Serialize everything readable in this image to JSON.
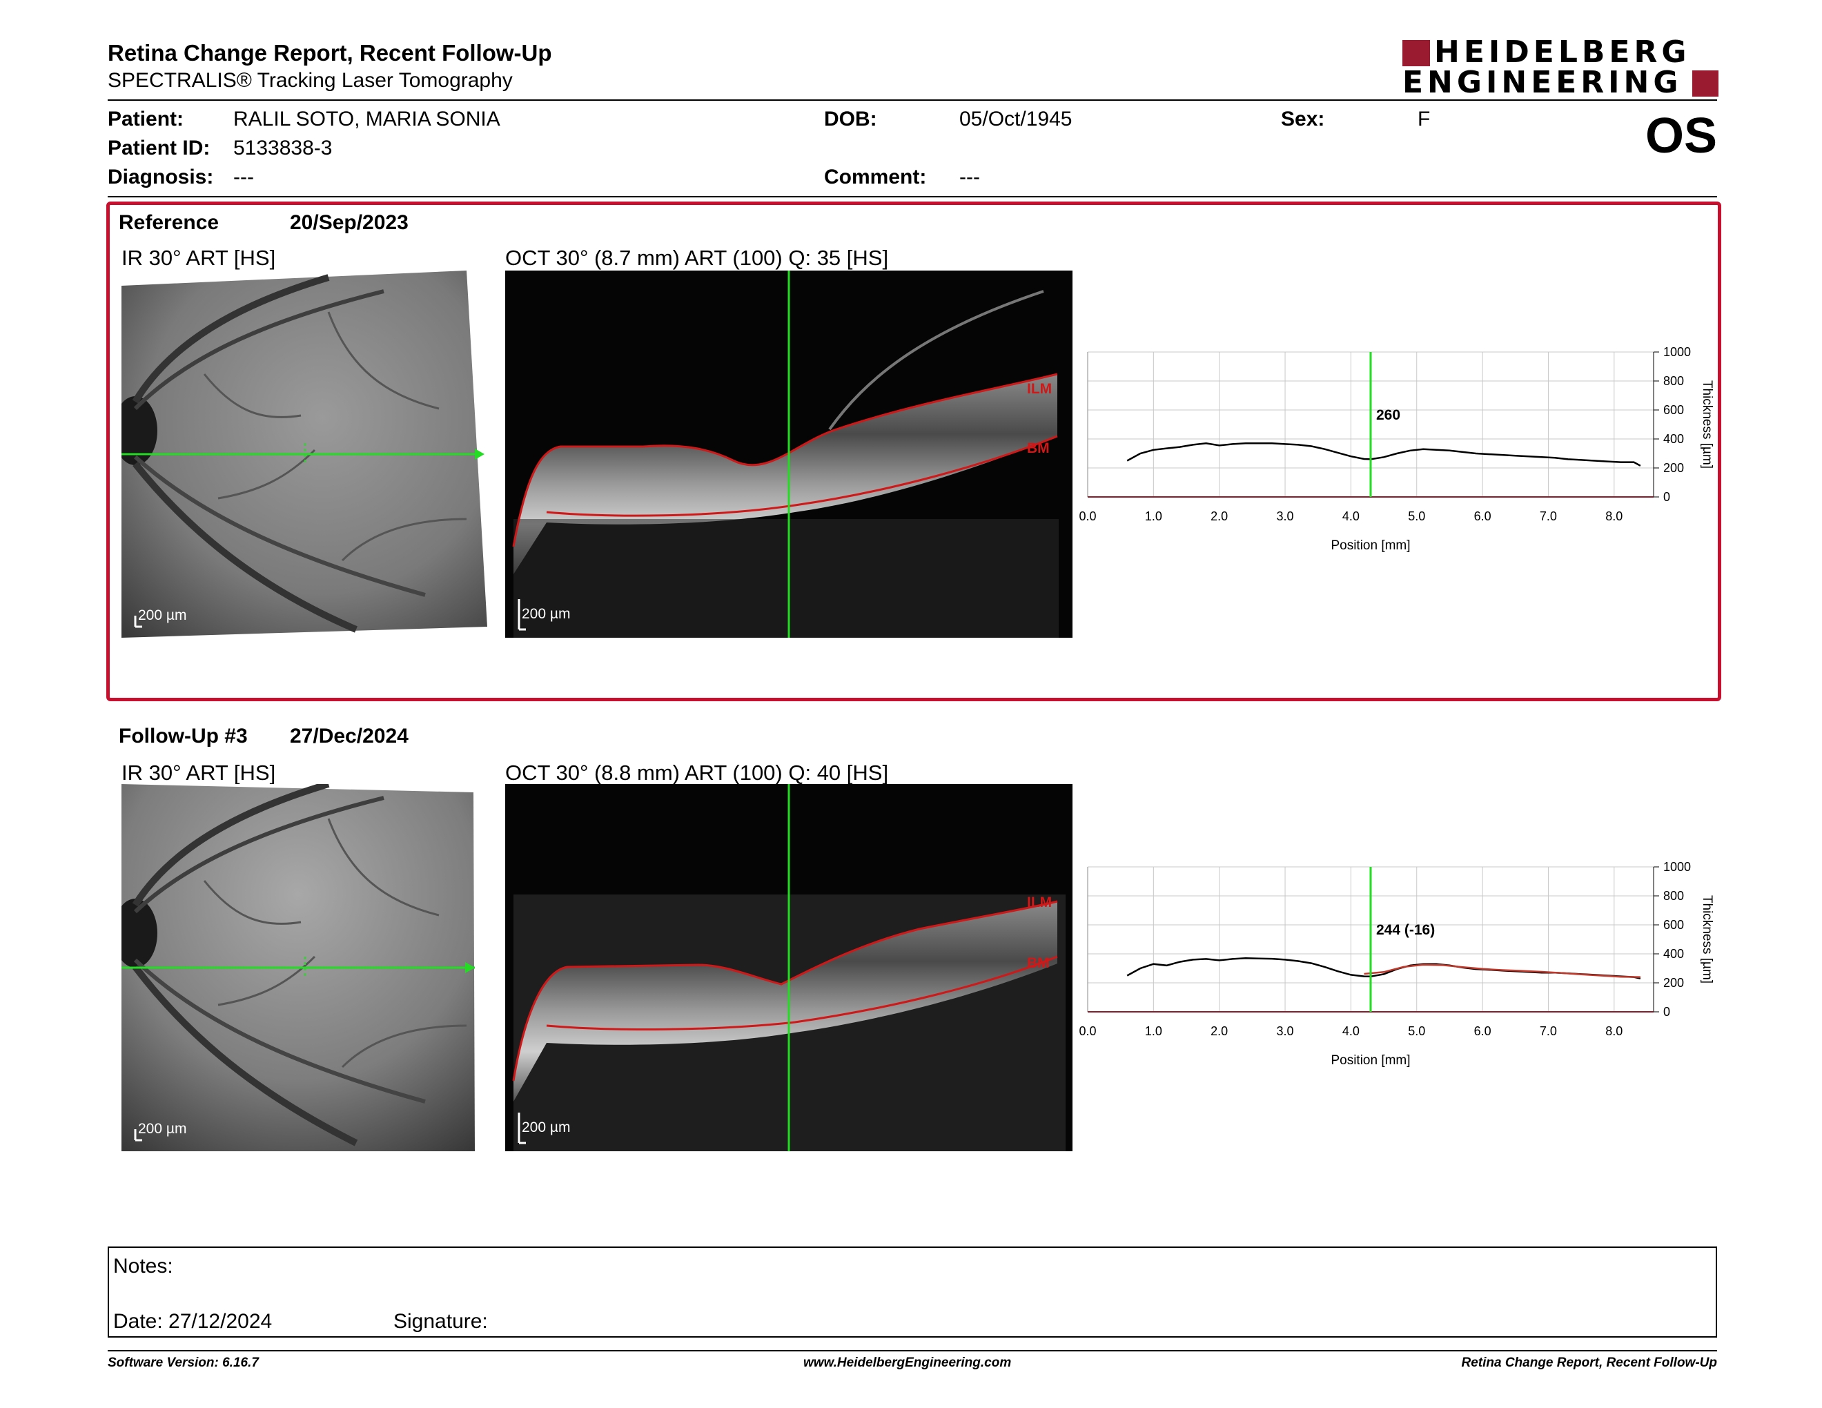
{
  "header": {
    "title": "Retina Change Report, Recent Follow-Up",
    "subtitle": "SPECTRALIS® Tracking Laser Tomography",
    "logo_line1": "HEIDELBERG",
    "logo_line2": "ENGINEERING",
    "logo_color": "#9a1a30"
  },
  "patient": {
    "patient_label": "Patient:",
    "patient_value": "RALIL SOTO, MARIA SONIA",
    "id_label": "Patient ID:",
    "id_value": "5133838-3",
    "diagnosis_label": "Diagnosis:",
    "diagnosis_value": "---",
    "dob_label": "DOB:",
    "dob_value": "05/Oct/1945",
    "comment_label": "Comment:",
    "comment_value": "---",
    "sex_label": "Sex:",
    "sex_value": "F",
    "eye": "OS"
  },
  "reference": {
    "label": "Reference",
    "date": "20/Sep/2023",
    "ir_label": "IR 30° ART [HS]",
    "oct_label": "OCT 30° (8.7 mm) ART (100) Q: 35 [HS]",
    "ir_scale": "200 µm",
    "oct_scale": "200 µm",
    "ilm": "ILM",
    "bm": "BM",
    "box_color": "#c8102e"
  },
  "followup": {
    "label": "Follow-Up #3",
    "date": "27/Dec/2024",
    "ir_label": "IR 30° ART [HS]",
    "oct_label": "OCT 30° (8.8 mm) ART (100) Q: 40 [HS]",
    "ir_scale": "200 µm",
    "oct_scale": "200 µm",
    "ilm": "ILM",
    "bm": "BM"
  },
  "chart_data": [
    {
      "type": "line",
      "xlabel": "Position [mm]",
      "ylabel": "Thickness [µm]",
      "xlim": [
        0,
        8.6
      ],
      "ylim": [
        0,
        1000
      ],
      "xticks": [
        "0.0",
        "1.0",
        "2.0",
        "3.0",
        "4.0",
        "5.0",
        "6.0",
        "7.0",
        "8.0"
      ],
      "yticks": [
        "0",
        "200",
        "400",
        "600",
        "800",
        "1000"
      ],
      "grid": true,
      "cursor_x": 4.3,
      "cursor_label": "260",
      "series": [
        {
          "color": "#000000",
          "x": [
            0.6,
            0.8,
            1.0,
            1.2,
            1.4,
            1.6,
            1.8,
            2.0,
            2.2,
            2.4,
            2.6,
            2.8,
            3.0,
            3.2,
            3.4,
            3.6,
            3.8,
            4.0,
            4.2,
            4.3,
            4.5,
            4.7,
            4.9,
            5.1,
            5.3,
            5.5,
            5.7,
            5.9,
            6.1,
            6.3,
            6.5,
            6.7,
            6.9,
            7.1,
            7.3,
            7.5,
            7.7,
            7.9,
            8.1,
            8.3,
            8.4
          ],
          "y": [
            250,
            300,
            325,
            335,
            345,
            360,
            370,
            355,
            365,
            370,
            370,
            370,
            365,
            360,
            350,
            330,
            305,
            280,
            262,
            260,
            275,
            300,
            320,
            330,
            325,
            320,
            310,
            300,
            295,
            290,
            285,
            280,
            275,
            270,
            260,
            255,
            250,
            245,
            240,
            240,
            215
          ]
        }
      ]
    },
    {
      "type": "line",
      "xlabel": "Position [mm]",
      "ylabel": "Thickness [µm]",
      "xlim": [
        0,
        8.6
      ],
      "ylim": [
        0,
        1000
      ],
      "xticks": [
        "0.0",
        "1.0",
        "2.0",
        "3.0",
        "4.0",
        "5.0",
        "6.0",
        "7.0",
        "8.0"
      ],
      "yticks": [
        "0",
        "200",
        "400",
        "600",
        "800",
        "1000"
      ],
      "grid": true,
      "cursor_x": 4.3,
      "cursor_label": "244 (-16)",
      "series": [
        {
          "color": "#000000",
          "x": [
            0.6,
            0.8,
            1.0,
            1.2,
            1.4,
            1.6,
            1.8,
            2.0,
            2.2,
            2.4,
            2.6,
            2.8,
            3.0,
            3.2,
            3.4,
            3.6,
            3.8,
            4.0,
            4.2,
            4.3,
            4.5,
            4.7,
            4.9,
            5.1,
            5.3,
            5.5,
            5.7,
            5.9,
            6.1,
            6.3,
            6.5,
            6.7,
            6.9,
            7.1,
            7.3,
            7.5,
            7.7,
            7.9,
            8.1,
            8.3,
            8.4
          ],
          "y": [
            250,
            300,
            330,
            320,
            345,
            360,
            365,
            355,
            365,
            370,
            368,
            366,
            360,
            350,
            335,
            310,
            280,
            255,
            245,
            244,
            260,
            295,
            320,
            330,
            330,
            320,
            305,
            295,
            290,
            285,
            280,
            275,
            270,
            270,
            265,
            260,
            255,
            250,
            245,
            240,
            230
          ]
        },
        {
          "color": "#c0392b",
          "x": [
            4.2,
            4.5,
            4.8,
            5.1,
            5.4,
            5.7,
            6.0,
            6.3,
            6.6,
            6.9,
            7.2,
            7.5,
            7.8,
            8.1,
            8.4
          ],
          "y": [
            262,
            275,
            310,
            325,
            322,
            308,
            296,
            288,
            283,
            276,
            268,
            258,
            250,
            242,
            240
          ]
        }
      ]
    }
  ],
  "notes": {
    "notes_label": "Notes:",
    "date_label": "Date: 27/12/2024",
    "signature_label": "Signature:"
  },
  "footer": {
    "software": "Software Version: 6.16.7",
    "website": "www.HeidelbergEngineering.com",
    "report": "Retina Change Report, Recent Follow-Up"
  }
}
